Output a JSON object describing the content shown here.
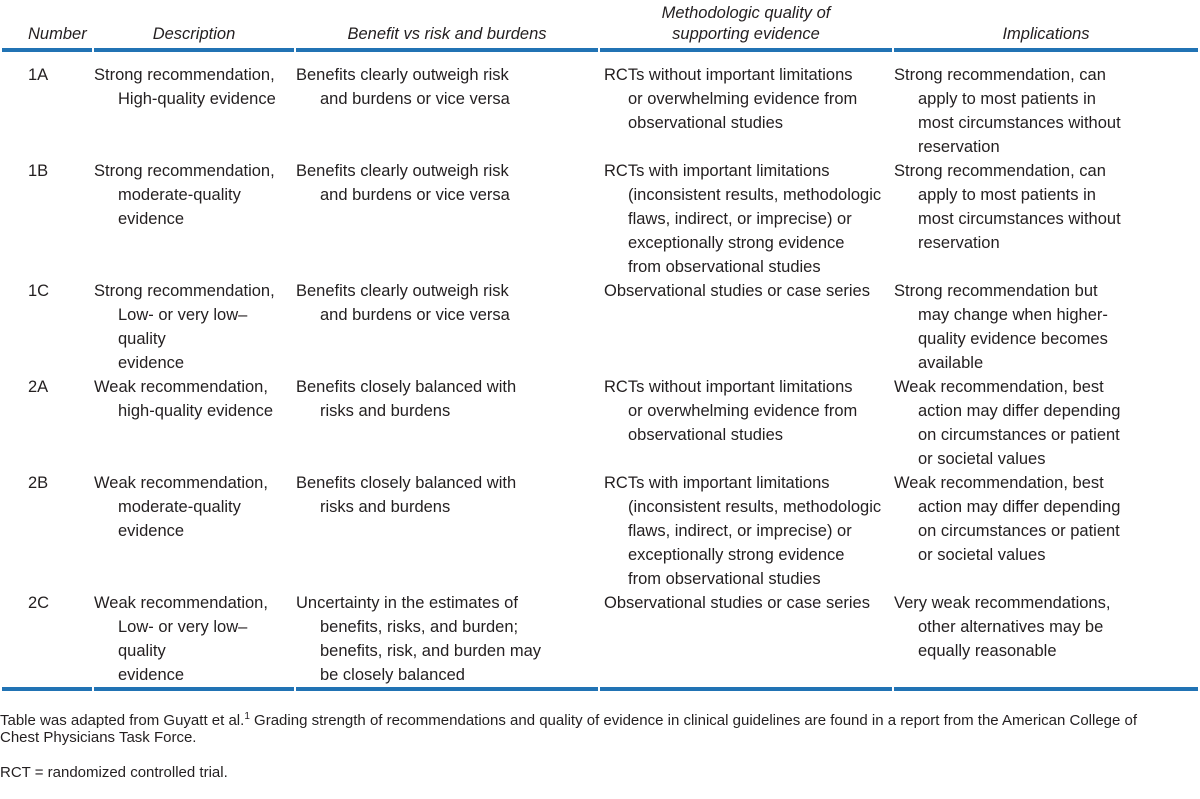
{
  "table": {
    "headers": {
      "number": "Number",
      "description": "Description",
      "benefit": "Benefit vs risk and burdens",
      "methodologic": "Methodologic quality of\nsupporting evidence",
      "implications": "Implications"
    },
    "rows": [
      {
        "number": "1A",
        "description": "Strong recommendation,\nHigh-quality evidence",
        "benefit": "Benefits clearly outweigh risk\nand burdens or vice versa",
        "methodologic": "RCTs without important limitations\nor overwhelming evidence from\nobservational studies",
        "implications": "Strong recommendation, can\napply to most patients in\nmost circumstances without\nreservation"
      },
      {
        "number": "1B",
        "description": "Strong recommendation,\nmoderate-quality\nevidence",
        "benefit": "Benefits clearly outweigh risk\nand burdens or vice versa",
        "methodologic": "RCTs with important limitations\n(inconsistent results, methodologic\nflaws, indirect, or imprecise) or\nexceptionally strong evidence\nfrom observational studies",
        "implications": "Strong recommendation, can\napply to most patients in\nmost circumstances without\nreservation"
      },
      {
        "number": "1C",
        "description": "Strong recommendation,\nLow- or very low– quality\nevidence",
        "benefit": "Benefits clearly outweigh risk\nand burdens or vice versa",
        "methodologic": "Observational studies or case series",
        "implications": "Strong recommendation but\nmay change when higher-\nquality evidence becomes\navailable"
      },
      {
        "number": "2A",
        "description": "Weak recommendation,\nhigh-quality evidence",
        "benefit": "Benefits closely balanced with\nrisks and burdens",
        "methodologic": "RCTs without important limitations\nor overwhelming evidence from\nobservational studies",
        "implications": "Weak recommendation, best\naction may differ depending\non circumstances or patient\nor societal values"
      },
      {
        "number": "2B",
        "description": "Weak recommendation,\nmoderate-quality\nevidence",
        "benefit": "Benefits closely balanced with\nrisks and burdens",
        "methodologic": "RCTs with important limitations\n(inconsistent results, methodologic\nflaws, indirect, or imprecise) or\nexceptionally strong evidence\nfrom observational studies",
        "implications": "Weak recommendation, best\naction may differ depending\non circumstances or patient\nor societal values"
      },
      {
        "number": "2C",
        "description": "Weak recommendation,\nLow- or very low– quality\nevidence",
        "benefit": "Uncertainty in the estimates of\nbenefits, risks, and burden;\nbenefits, risk, and burden may\nbe closely balanced",
        "methodologic": "Observational studies or case series",
        "implications": "Very weak recommendations,\nother alternatives may be\nequally reasonable"
      }
    ]
  },
  "footnotes": {
    "adapted_prefix": "Table was adapted from Guyatt et al.",
    "reference_superscript": "1",
    "adapted_rest": " Grading strength of recommendations and quality of evidence in clinical guidelines are found in a report from the American College of\nChest Physicians Task Force.",
    "abbreviation": "RCT = randomized controlled trial."
  },
  "colors": {
    "rule_blue": "#2173b4",
    "text": "#231f20"
  }
}
